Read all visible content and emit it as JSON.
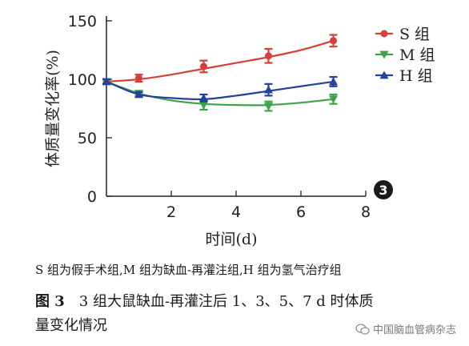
{
  "chart_data": {
    "type": "line",
    "ylabel": "体质量变化率(%)",
    "xlabel": "时间(d)",
    "xlim": [
      0,
      8
    ],
    "ylim": [
      0,
      150
    ],
    "xticks": [
      2,
      4,
      6,
      8
    ],
    "yticks": [
      0,
      50,
      100,
      150
    ],
    "grid": false,
    "legend_position": "top-right",
    "panel_badge": "3",
    "series": [
      {
        "name": "S 组",
        "color": "#d7403a",
        "marker": "circle",
        "x": [
          0,
          1,
          3,
          5,
          7
        ],
        "y": [
          98,
          101,
          111,
          120,
          133
        ],
        "err": [
          2,
          3,
          5,
          6,
          5
        ],
        "curve_y": [
          98,
          100,
          104,
          109,
          114,
          119,
          125,
          133
        ]
      },
      {
        "name": "M 组",
        "color": "#3fa24a",
        "marker": "triangle-down",
        "x": [
          0,
          1,
          3,
          5,
          7
        ],
        "y": [
          98,
          88,
          78,
          77,
          83
        ],
        "err": [
          2,
          2,
          4,
          4,
          4
        ],
        "curve_y": [
          98,
          88,
          82,
          79,
          78,
          78,
          80,
          83
        ]
      },
      {
        "name": "H 组",
        "color": "#25429a",
        "marker": "triangle-up",
        "x": [
          0,
          1,
          3,
          5,
          7
        ],
        "y": [
          98,
          87,
          84,
          91,
          98
        ],
        "err": [
          2,
          2,
          3,
          5,
          4
        ],
        "curve_y": [
          98,
          87,
          84,
          83,
          86,
          90,
          94,
          98
        ]
      }
    ]
  },
  "caption": {
    "note": "S 组为假手术组,M 组为缺血-再灌注组,H 组为氢气治疗组",
    "figure_number": "图 3",
    "title_line1": "3 组大鼠缺血-再灌注后 1、3、5、7 d 时体质",
    "title_line2": "量变化情况"
  },
  "watermark": {
    "text": "中国脑血管病杂志"
  }
}
